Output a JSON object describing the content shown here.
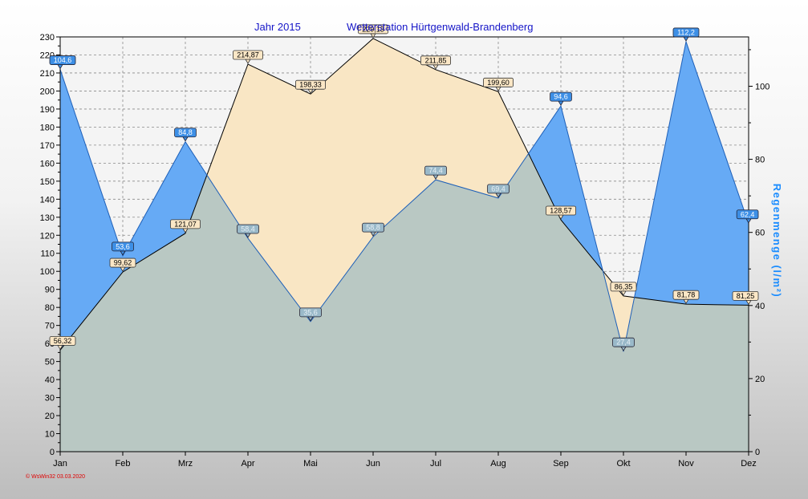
{
  "chart_data": {
    "type": "area",
    "title_year": "Jahr  2015",
    "title_station": "Wetterstation Hürtgenwald-Brandenberg",
    "categories": [
      "Jan",
      "Feb",
      "Mrz",
      "Apr",
      "Mai",
      "Jun",
      "Jul",
      "Aug",
      "Sep",
      "Okt",
      "Nov",
      "Dez"
    ],
    "left_axis": {
      "ylim": [
        0,
        230
      ],
      "step": 10,
      "label": ""
    },
    "right_axis": {
      "ylim": [
        0,
        113.5
      ],
      "ticks": [
        0,
        20,
        40,
        60,
        80,
        100
      ],
      "label": "Regenmenge   (l/m²)"
    },
    "series": [
      {
        "axis": "left",
        "values": [
          56.32,
          99.62,
          121.07,
          214.87,
          198.33,
          229.13,
          211.85,
          199.6,
          128.57,
          86.35,
          81.78,
          81.25
        ],
        "labels": [
          "56,32",
          "99,62",
          "121,07",
          "214,87",
          "198,33",
          "229,13",
          "211,85",
          "199,60",
          "128,57",
          "86,35",
          "81,78",
          "81,25"
        ],
        "color": "#f9e6c4"
      },
      {
        "name": "Regenmenge",
        "axis": "right",
        "values": [
          104.6,
          53.6,
          84.8,
          58.4,
          35.6,
          58.8,
          74.4,
          69.4,
          94.6,
          27.4,
          112.2,
          62.4
        ],
        "labels": [
          "104,6",
          "53,6",
          "84,8",
          "58,4",
          "35,6",
          "58,8",
          "74,4",
          "69,4",
          "94,6",
          "27,4",
          "112,2",
          "62,4"
        ],
        "color": "#66aaf5"
      }
    ],
    "grid": true,
    "footer": "© WsWin32  03.03.2020"
  },
  "colors": {
    "sun_fill": "#f9e6c4",
    "rain_fill": "#66aaf5",
    "overlap_fill": "#b9c8c3",
    "sun_label_bg": "#fbe7c6",
    "rain_label_bg": "#3d8fe6",
    "title": "#1515c8"
  }
}
